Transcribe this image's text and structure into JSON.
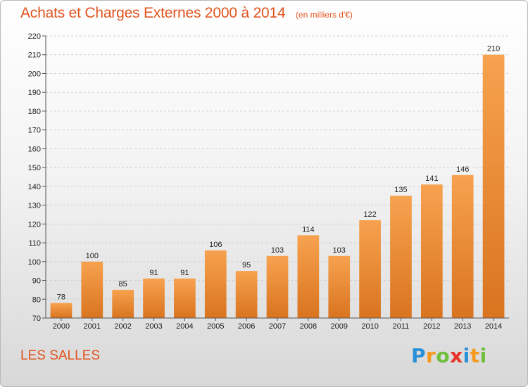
{
  "title": "Achats et Charges Externes 2000 à 2014",
  "subtitle": "(en milliers d'€)",
  "commune": "LES SALLES",
  "logo": {
    "letters": [
      "P",
      "r",
      "o",
      "x",
      "i",
      "t",
      "i"
    ],
    "colors": [
      "#2a8fd6",
      "#f39a1e",
      "#6fbf3b",
      "#e8332b",
      "#2a8fd6",
      "#f39a1e",
      "#6fbf3b"
    ]
  },
  "colors": {
    "accent": "#e0541f",
    "bar_light": "#f7a24f",
    "bar_dark": "#d9741f"
  },
  "chart_data": {
    "type": "bar",
    "categories": [
      "2000",
      "2001",
      "2002",
      "2003",
      "2004",
      "2005",
      "2006",
      "2007",
      "2008",
      "2009",
      "2010",
      "2011",
      "2012",
      "2013",
      "2014"
    ],
    "values": [
      78,
      100,
      85,
      91,
      91,
      106,
      95,
      103,
      114,
      103,
      122,
      135,
      141,
      146,
      210
    ],
    "ylim": [
      70,
      220
    ],
    "yticks": [
      70,
      80,
      90,
      100,
      110,
      120,
      130,
      140,
      150,
      160,
      170,
      180,
      190,
      200,
      210,
      220
    ],
    "grid": true,
    "xlabel": "",
    "ylabel": ""
  }
}
